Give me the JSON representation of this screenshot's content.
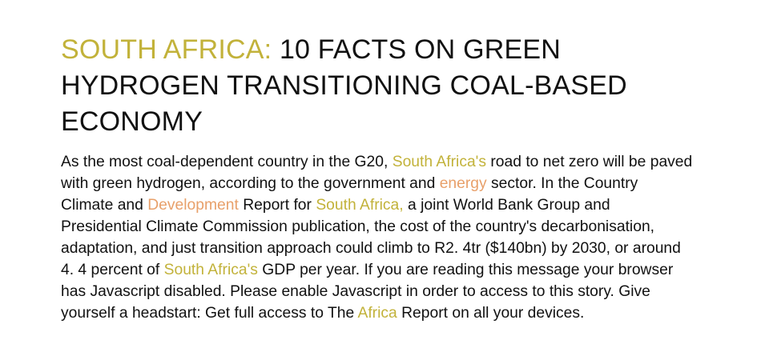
{
  "headline": {
    "kicker": "SOUTH AFRICA:",
    "title": " 10 FACTS ON GREEN HYDROGEN TRANSITIONING COAL-BASED ECONOMY"
  },
  "body": {
    "t1": "As the most coal-dependent country in the G20, ",
    "link_south_africas_1": "South Africa's",
    "t2": " road to net zero will be paved with green hydrogen, according to the government and ",
    "link_energy": "energy",
    "t3": " sector. In the Country Climate and ",
    "link_development": "Development",
    "t4": " Report for ",
    "link_south_africa": "South Africa,",
    "t5": " a joint World Bank Group and Presidential Climate Commission publication, the cost of the country's decarbonisation, adaptation, and just transition approach could climb to R2. 4tr ($140bn) by 2030, or around 4. 4 percent of ",
    "link_south_africas_2": "South Africa's",
    "t6": " GDP per year. If you are reading this message your browser has Javascript disabled. Please enable Javascript in order to access to this story. Give yourself a headstart: Get full access to The ",
    "link_africa": "Africa",
    "t7": " Report on all your devices."
  },
  "colors": {
    "text": "#111111",
    "kicker_link": "#c2b23a",
    "topic_link": "#e8a06a",
    "background": "#ffffff"
  }
}
